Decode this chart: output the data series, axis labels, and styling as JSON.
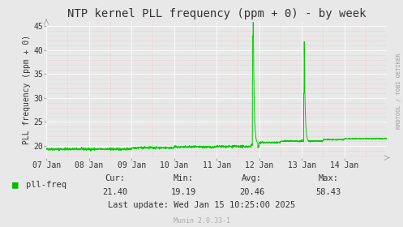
{
  "title": "NTP kernel PLL frequency (ppm + 0) - by week",
  "ylabel": "PLL frequency (ppm + 0)",
  "x_labels": [
    "07 Jan",
    "08 Jan",
    "09 Jan",
    "10 Jan",
    "11 Jan",
    "12 Jan",
    "13 Jan",
    "14 Jan"
  ],
  "ylim": [
    17.5,
    46
  ],
  "yticks": [
    20,
    25,
    30,
    35,
    40,
    45
  ],
  "bg_color": "#e8e8e8",
  "plot_bg_color": "#e8e8e8",
  "grid_color_white": "#ffffff",
  "grid_color_pink": "#e8b0b0",
  "line_color": "#00cc00",
  "legend_label": "pll-freq",
  "legend_color": "#00bb00",
  "cur": "21.40",
  "min_val": "19.19",
  "avg": "20.46",
  "max_val": "58.43",
  "last_update": "Last update: Wed Jan 15 10:25:00 2025",
  "munin_version": "Munin 2.0.33-1",
  "watermark": "RRDTOOL / TOBI OETIKER",
  "font_color": "#333333",
  "title_fontsize": 10,
  "label_fontsize": 7,
  "tick_fontsize": 7,
  "stats_fontsize": 7.5
}
